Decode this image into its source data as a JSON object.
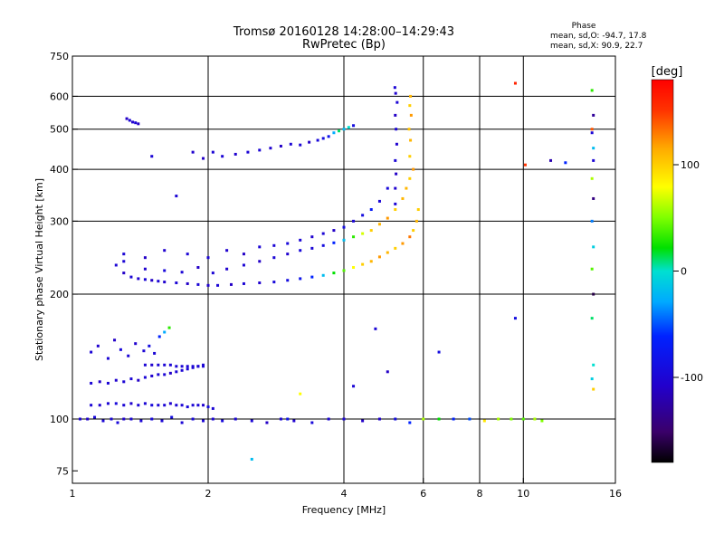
{
  "chart_data": {
    "type": "scatter",
    "title": "Tromsø 20160128 14:28:00–14:29:43",
    "subtitle": "RwPretec (Bp)",
    "xlabel": "Frequency [MHz]",
    "ylabel": "Stationary phase Virtual Height [km]",
    "x_scale": "log",
    "y_scale": "log",
    "xlim": [
      1,
      16
    ],
    "ylim": [
      70,
      750
    ],
    "x_ticks": [
      1,
      2,
      4,
      6,
      8,
      10,
      16
    ],
    "y_ticks": [
      75,
      100,
      200,
      300,
      400,
      500,
      600,
      750
    ],
    "x_grid": [
      2,
      4,
      6,
      8,
      10
    ],
    "y_grid": [
      100,
      200,
      300,
      400,
      500,
      600
    ],
    "grid": true,
    "phase_stats": {
      "title": "Phase",
      "line_o": "mean, sd,O: -94.7, 17.8",
      "line_x": "mean, sd,X:  90.9, 22.7"
    },
    "colorbar": {
      "label": "[deg]",
      "range": [
        -180,
        180
      ],
      "ticks": [
        -100,
        0,
        100
      ],
      "colormap": "rainbow"
    },
    "series": [
      {
        "x": [
          1.04,
          1.08,
          1.12,
          1.17,
          1.22,
          1.26,
          1.3,
          1.35,
          1.42,
          1.5,
          1.58,
          1.66,
          1.75,
          1.85,
          1.95,
          2.05,
          2.15,
          2.3,
          2.5,
          2.7,
          2.9,
          3.1,
          3.4,
          3.7,
          4.0,
          4.4,
          4.8,
          5.2,
          5.6,
          6.0,
          6.5,
          7.0,
          7.6,
          8.2,
          8.8,
          9.4,
          10.0,
          10.6,
          11.0
        ],
        "y": [
          100,
          100,
          101,
          99,
          100,
          98,
          100,
          100,
          99,
          100,
          99,
          101,
          98,
          100,
          99,
          100,
          99,
          100,
          99,
          98,
          100,
          99,
          98,
          100,
          100,
          99,
          100,
          100,
          98,
          100,
          100,
          100,
          100,
          99,
          100,
          100,
          100,
          100,
          99
        ],
        "phase": [
          -100,
          -105,
          -95,
          -100,
          -100,
          -95,
          -105,
          -100,
          -100,
          -95,
          -100,
          -90,
          -100,
          -95,
          -100,
          -100,
          -95,
          -100,
          -100,
          -110,
          -100,
          -105,
          -95,
          -100,
          -100,
          -110,
          -105,
          -90,
          -60,
          60,
          20,
          -60,
          -50,
          90,
          60,
          50,
          40,
          60,
          50
        ]
      },
      {
        "x": [
          1.1,
          1.15,
          1.2,
          1.25,
          1.3,
          1.35,
          1.4,
          1.45,
          1.5,
          1.55,
          1.6,
          1.65,
          1.7,
          1.75,
          1.8,
          1.85,
          1.9,
          1.95,
          2.0,
          2.05
        ],
        "y": [
          108,
          108,
          109,
          109,
          108,
          109,
          108,
          109,
          108,
          108,
          108,
          109,
          108,
          108,
          107,
          108,
          108,
          108,
          107,
          106
        ],
        "phase": [
          -100,
          -105,
          -100,
          -95,
          -100,
          -105,
          -100,
          -100,
          -95,
          -100,
          -100,
          -105,
          -100,
          -100,
          -95,
          -100,
          -100,
          -105,
          -90,
          -100
        ]
      },
      {
        "x": [
          1.1,
          1.15,
          1.2,
          1.25,
          1.3,
          1.35,
          1.4,
          1.45,
          1.5,
          1.55,
          1.6,
          1.65,
          1.7,
          1.75,
          1.8,
          1.85,
          1.9,
          1.95
        ],
        "y": [
          122,
          123,
          122,
          124,
          123,
          125,
          124,
          126,
          127,
          128,
          128,
          129,
          130,
          131,
          132,
          133,
          134,
          135
        ],
        "phase": [
          -100,
          -110,
          -100,
          -105,
          -100,
          -100,
          -110,
          -100,
          -105,
          -100,
          -100,
          -110,
          -100,
          -100,
          -100,
          -100,
          -100,
          -100
        ]
      },
      {
        "x": [
          1.45,
          1.5,
          1.55,
          1.6,
          1.65,
          1.7,
          1.75,
          1.8,
          1.85,
          1.9,
          1.95
        ],
        "y": [
          135,
          135,
          135,
          135,
          135,
          134,
          134,
          134,
          134,
          134,
          134
        ],
        "phase": [
          -100,
          -105,
          -100,
          -100,
          -100,
          -100,
          -100,
          -100,
          -100,
          -100,
          -100
        ]
      },
      {
        "x": [
          1.1,
          1.14,
          1.2,
          1.24,
          1.28,
          1.33,
          1.38,
          1.44,
          1.48,
          1.52,
          1.56,
          1.6,
          1.64
        ],
        "y": [
          145,
          150,
          140,
          155,
          147,
          142,
          152,
          146,
          150,
          144,
          158,
          162,
          166
        ],
        "phase": [
          -100,
          -105,
          -100,
          -110,
          -95,
          -100,
          -105,
          -100,
          -90,
          -100,
          -60,
          -30,
          30
        ]
      },
      {
        "x": [
          1.32,
          1.34,
          1.36,
          1.38,
          1.4
        ],
        "y": [
          530,
          525,
          520,
          518,
          515
        ],
        "phase": [
          -110,
          -100,
          -105,
          -100,
          -110
        ]
      },
      {
        "x": [
          1.5,
          1.7,
          1.85,
          1.95,
          2.05,
          2.15,
          2.3,
          2.45,
          2.6,
          2.75,
          2.9,
          3.05,
          3.2,
          3.35,
          3.5,
          3.6,
          3.7,
          3.8,
          3.9,
          4.0,
          4.1,
          4.2
        ],
        "y": [
          430,
          345,
          440,
          425,
          440,
          430,
          435,
          440,
          445,
          450,
          455,
          460,
          458,
          465,
          470,
          475,
          480,
          490,
          495,
          500,
          505,
          510
        ],
        "phase": [
          -100,
          -100,
          -105,
          -110,
          -100,
          -100,
          -105,
          -100,
          -100,
          -105,
          -110,
          -100,
          -100,
          -110,
          -95,
          -90,
          -80,
          -30,
          10,
          -20,
          0,
          -90
        ]
      },
      {
        "x": [
          1.25,
          1.3,
          1.35,
          1.4,
          1.45,
          1.5,
          1.55,
          1.6,
          1.7,
          1.8,
          1.9,
          2.0,
          2.1,
          2.25,
          2.4,
          2.6,
          2.8,
          3.0,
          3.2,
          3.4,
          3.6,
          3.8,
          4.0,
          4.2,
          4.4,
          4.6,
          4.8,
          5.0,
          5.2,
          5.4,
          5.6,
          5.7,
          5.8,
          5.85
        ],
        "y": [
          235,
          225,
          220,
          218,
          217,
          216,
          215,
          214,
          213,
          212,
          211,
          210,
          210,
          211,
          212,
          213,
          214,
          216,
          218,
          220,
          222,
          225,
          228,
          232,
          236,
          240,
          246,
          252,
          258,
          265,
          275,
          285,
          300,
          320
        ],
        "phase": [
          -100,
          -110,
          -100,
          -105,
          -100,
          -110,
          -100,
          -105,
          -100,
          -110,
          -100,
          -105,
          -100,
          -110,
          -100,
          -105,
          -95,
          -90,
          -80,
          -60,
          -20,
          20,
          40,
          80,
          100,
          110,
          120,
          110,
          100,
          120,
          130,
          100,
          110,
          100
        ]
      },
      {
        "x": [
          1.3,
          1.45,
          1.6,
          1.75,
          1.9,
          2.05,
          2.2,
          2.4,
          2.6,
          2.8,
          3.0,
          3.2,
          3.4,
          3.6,
          3.8,
          4.0,
          4.2,
          4.4,
          4.6,
          4.8,
          5.0,
          5.2,
          5.4,
          5.5,
          5.6,
          5.7
        ],
        "y": [
          240,
          230,
          228,
          226,
          232,
          225,
          230,
          235,
          240,
          245,
          250,
          255,
          258,
          262,
          266,
          270,
          275,
          280,
          285,
          295,
          305,
          320,
          340,
          360,
          380,
          400
        ],
        "phase": [
          -100,
          -105,
          -95,
          -100,
          -110,
          -100,
          -105,
          -100,
          -110,
          -100,
          -105,
          -95,
          -100,
          -90,
          -60,
          -20,
          30,
          70,
          100,
          110,
          120,
          100,
          110,
          110,
          100,
          120
        ]
      },
      {
        "x": [
          1.3,
          1.45,
          1.6,
          1.8,
          2.0,
          2.2,
          2.4,
          2.6,
          2.8,
          3.0,
          3.2,
          3.4,
          3.6,
          3.8,
          4.0,
          4.2,
          4.4,
          4.6,
          4.8,
          5.0
        ],
        "y": [
          250,
          245,
          255,
          250,
          245,
          255,
          250,
          260,
          262,
          265,
          270,
          275,
          280,
          285,
          290,
          300,
          310,
          320,
          335,
          360
        ],
        "phase": [
          -100,
          -110,
          -105,
          -100,
          -100,
          -105,
          -110,
          -100,
          -100,
          -95,
          -100,
          -105,
          -100,
          -110,
          -90,
          -100,
          -90,
          -70,
          -100,
          -95
        ]
      },
      {
        "x": [
          5.2,
          5.2,
          5.22,
          5.2,
          5.24,
          5.22,
          5.2,
          5.25,
          5.21,
          5.19
        ],
        "y": [
          330,
          360,
          390,
          420,
          460,
          500,
          540,
          580,
          610,
          630
        ],
        "phase": [
          -100,
          -105,
          -110,
          -100,
          -105,
          -100,
          -110,
          -100,
          -105,
          -100
        ]
      },
      {
        "x": [
          5.6,
          5.62,
          5.58,
          5.64,
          5.6,
          5.62
        ],
        "y": [
          430,
          470,
          500,
          540,
          570,
          600
        ],
        "phase": [
          100,
          110,
          105,
          120,
          100,
          110
        ]
      },
      {
        "x": [
          9.6,
          10.1,
          11.5,
          12.4,
          14.2,
          14.3,
          14.2,
          14.3,
          14.2,
          14.3,
          14.2,
          14.3,
          14.2,
          14.3,
          14.2,
          14.3,
          14.2,
          14.3,
          14.2,
          14.3
        ],
        "y": [
          645,
          410,
          420,
          415,
          620,
          540,
          500,
          420,
          380,
          340,
          300,
          260,
          230,
          200,
          175,
          135,
          125,
          118,
          490,
          450
        ],
        "phase": [
          160,
          150,
          -120,
          -60,
          30,
          -130,
          140,
          -100,
          60,
          -140,
          -40,
          -10,
          40,
          -160,
          10,
          0,
          -10,
          100,
          -100,
          -20
        ]
      },
      {
        "x": [
          2.5,
          3.2,
          4.2,
          4.7,
          5.0,
          9.6,
          3.0,
          6.5
        ],
        "y": [
          80,
          115,
          120,
          165,
          130,
          175,
          100,
          145
        ],
        "phase": [
          -20,
          80,
          -100,
          -100,
          -110,
          -90,
          -80,
          -90
        ]
      }
    ]
  }
}
